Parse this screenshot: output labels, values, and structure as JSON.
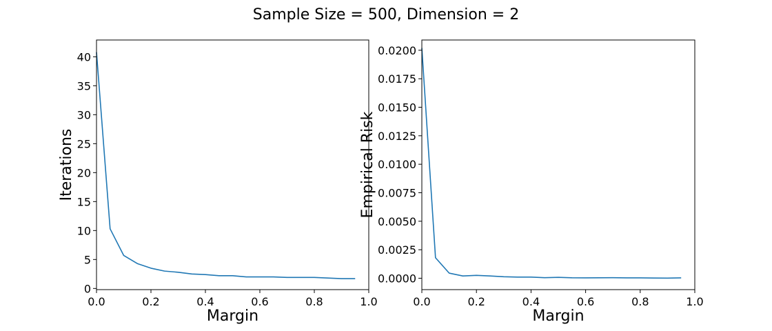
{
  "suptitle": "Sample Size = 500, Dimension = 2",
  "colors": {
    "series": "#1f77b4",
    "axes": "#000000",
    "background": "#ffffff"
  },
  "chart_data": [
    {
      "type": "line",
      "xlabel": "Margin",
      "ylabel": "Iterations",
      "xlim": [
        0.0,
        1.0
      ],
      "ylim": [
        -0.2,
        42.9
      ],
      "xticks": [
        0.0,
        0.2,
        0.4,
        0.6,
        0.8,
        1.0
      ],
      "xtick_labels": [
        "0.0",
        "0.2",
        "0.4",
        "0.6",
        "0.8",
        "1.0"
      ],
      "yticks": [
        0,
        5,
        10,
        15,
        20,
        25,
        30,
        35,
        40
      ],
      "ytick_labels": [
        "0",
        "5",
        "10",
        "15",
        "20",
        "25",
        "30",
        "35",
        "40"
      ],
      "grid": false,
      "series": [
        {
          "x": [
            0.0,
            0.05,
            0.1,
            0.15,
            0.2,
            0.25,
            0.3,
            0.35,
            0.4,
            0.45,
            0.5,
            0.55,
            0.6,
            0.65,
            0.7,
            0.75,
            0.8,
            0.85,
            0.9,
            0.95
          ],
          "y": [
            40.8,
            10.3,
            5.7,
            4.3,
            3.5,
            3.0,
            2.8,
            2.5,
            2.4,
            2.2,
            2.2,
            2.0,
            2.0,
            2.0,
            1.9,
            1.9,
            1.9,
            1.8,
            1.7,
            1.7
          ]
        }
      ]
    },
    {
      "type": "line",
      "xlabel": "Margin",
      "ylabel": "Empirical Risk",
      "xlim": [
        0.0,
        1.0
      ],
      "ylim": [
        -0.001,
        0.0209
      ],
      "xticks": [
        0.0,
        0.2,
        0.4,
        0.6,
        0.8,
        1.0
      ],
      "xtick_labels": [
        "0.0",
        "0.2",
        "0.4",
        "0.6",
        "0.8",
        "1.0"
      ],
      "yticks": [
        0.0,
        0.0025,
        0.005,
        0.0075,
        0.01,
        0.0125,
        0.015,
        0.0175,
        0.02
      ],
      "ytick_labels": [
        "0.0000",
        "0.0025",
        "0.0050",
        "0.0075",
        "0.0100",
        "0.0125",
        "0.0150",
        "0.0175",
        "0.0200"
      ],
      "grid": false,
      "series": [
        {
          "x": [
            0.0,
            0.05,
            0.1,
            0.15,
            0.2,
            0.25,
            0.3,
            0.35,
            0.4,
            0.45,
            0.5,
            0.55,
            0.6,
            0.65,
            0.7,
            0.75,
            0.8,
            0.85,
            0.9,
            0.95
          ],
          "y": [
            0.0202,
            0.0018,
            0.00045,
            0.0002,
            0.00025,
            0.0002,
            0.00013,
            0.0001,
            0.0001,
            5e-05,
            8e-05,
            4e-05,
            3e-05,
            4e-05,
            5e-05,
            3e-05,
            3e-05,
            2e-05,
            1e-05,
            3e-05
          ]
        }
      ]
    }
  ]
}
